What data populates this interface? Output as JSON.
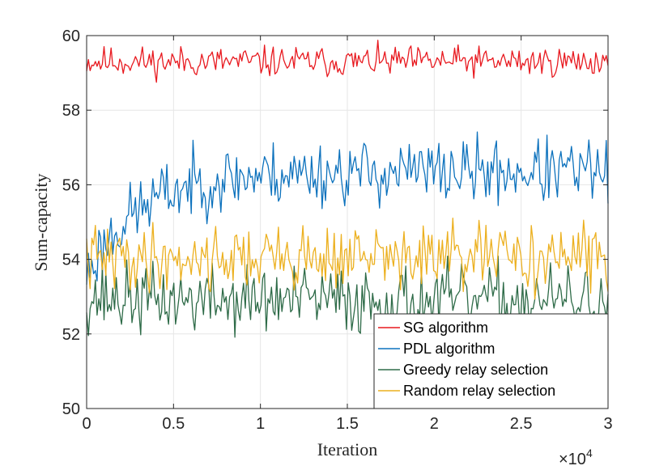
{
  "chart_data": {
    "type": "line",
    "title": "",
    "xlabel": "Iteration",
    "ylabel": "Sum-capacity",
    "x_multiplier_label": "×10",
    "x_multiplier_exp": "4",
    "xlim": [
      0,
      3
    ],
    "ylim": [
      50,
      60
    ],
    "x_ticks": [
      0,
      0.5,
      1,
      1.5,
      2,
      2.5,
      3
    ],
    "x_tick_labels": [
      "0",
      "0.5",
      "1",
      "1.5",
      "2",
      "2.5",
      "3"
    ],
    "y_ticks": [
      50,
      52,
      54,
      56,
      58,
      60
    ],
    "y_tick_labels": [
      "50",
      "52",
      "54",
      "56",
      "58",
      "60"
    ],
    "grid": true,
    "legend_position": "bottom-right",
    "series": [
      {
        "name": "SG algorithm",
        "color": "#e8191f",
        "start": 59.3,
        "plateau": 59.3,
        "rise": 0.5,
        "noise": 0.35,
        "seed": 11
      },
      {
        "name": "PDL algorithm",
        "color": "#0d72bd",
        "start": 53.6,
        "plateau": 56.35,
        "rise": 0.6,
        "noise": 0.75,
        "seed": 23
      },
      {
        "name": "Greedy relay selection",
        "color": "#2e6b48",
        "start": 53.0,
        "plateau": 52.9,
        "rise": 0.5,
        "noise": 0.8,
        "seed": 37
      },
      {
        "name": "Random relay selection",
        "color": "#ecb01f",
        "start": 54.0,
        "plateau": 54.05,
        "rise": 0.5,
        "noise": 0.75,
        "seed": 41
      }
    ],
    "num_points": 300
  }
}
